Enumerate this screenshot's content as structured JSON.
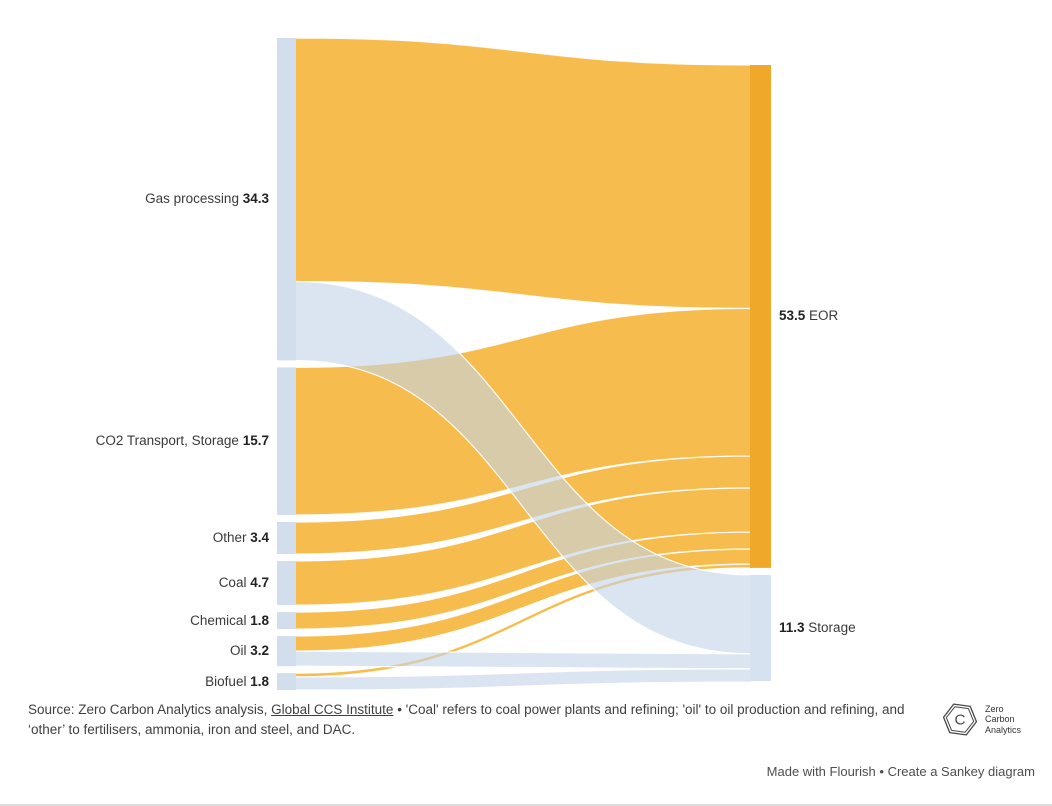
{
  "chart_data": {
    "type": "sankey",
    "left_nodes": [
      {
        "label": "Gas processing",
        "value": 34.3
      },
      {
        "label": "CO2 Transport, Storage",
        "value": 15.7
      },
      {
        "label": "Other",
        "value": 3.4
      },
      {
        "label": "Coal",
        "value": 4.7
      },
      {
        "label": "Chemical",
        "value": 1.8
      },
      {
        "label": "Oil",
        "value": 3.2
      },
      {
        "label": "Biofuel",
        "value": 1.8
      }
    ],
    "right_nodes": [
      {
        "label": "EOR",
        "value": 53.5
      },
      {
        "label": "Storage",
        "value": 11.3
      }
    ],
    "links": [
      {
        "source": "Gas processing",
        "target": "EOR",
        "value": 25.9
      },
      {
        "source": "Gas processing",
        "target": "Storage",
        "value": 8.4
      },
      {
        "source": "CO2 Transport, Storage",
        "target": "EOR",
        "value": 15.7
      },
      {
        "source": "Other",
        "target": "EOR",
        "value": 3.4
      },
      {
        "source": "Coal",
        "target": "EOR",
        "value": 4.7
      },
      {
        "source": "Chemical",
        "target": "EOR",
        "value": 1.8
      },
      {
        "source": "Oil",
        "target": "EOR",
        "value": 1.6
      },
      {
        "source": "Oil",
        "target": "Storage",
        "value": 1.6
      },
      {
        "source": "Biofuel",
        "target": "EOR",
        "value": 0.4
      },
      {
        "source": "Biofuel",
        "target": "Storage",
        "value": 1.4
      }
    ],
    "colors": {
      "flow_eor": "#F4AE27",
      "flow_storage": "#C3D4E8",
      "node_source": "#D2DEEC",
      "node_eor": "#F0A82A",
      "node_storage": "#D6E2EF"
    },
    "legend_position": "none",
    "grid": false
  },
  "footer": {
    "source_prefix": "Source: Zero Carbon Analytics analysis, ",
    "source_link": "Global CCS Institute",
    "source_suffix": " • 'Coal' refers to coal power plants and refining; 'oil' to oil production and refining, and ‘other’ to fertilisers, ammonia, iron and steel, and DAC.",
    "logo": {
      "letter": "C",
      "line1": "Zero",
      "line2": "Carbon",
      "line3": "Analytics"
    },
    "made_with": "Made with Flourish",
    "separator": "•",
    "cta": "Create a Sankey diagram"
  }
}
